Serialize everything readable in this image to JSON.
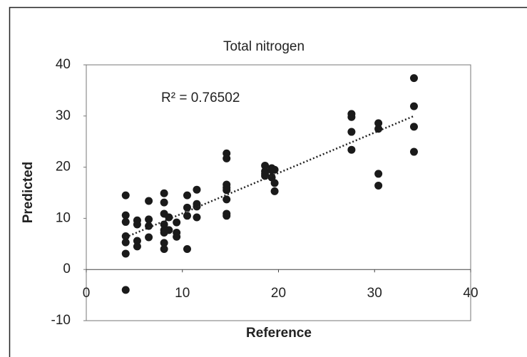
{
  "chart_data": {
    "type": "scatter",
    "title": "Total nitrogen",
    "x_label": "Reference",
    "y_label": "Predicted",
    "annotation": "R² = 0.76502",
    "color": "#1a1a1a",
    "x": [
      4.1,
      4.1,
      4.1,
      4.1,
      4.1,
      4.1,
      4.1,
      5.3,
      5.3,
      5.3,
      5.3,
      6.5,
      6.5,
      6.5,
      6.5,
      8.1,
      8.1,
      8.1,
      8.1,
      8.1,
      8.1,
      8.1,
      8.1,
      8.6,
      8.6,
      9.4,
      9.4,
      9.4,
      10.5,
      10.5,
      10.5,
      10.5,
      11.5,
      11.5,
      11.5,
      11.5,
      14.6,
      14.6,
      14.6,
      14.6,
      14.6,
      14.6,
      14.6,
      14.6,
      18.6,
      18.6,
      18.6,
      18.6,
      19.3,
      19.3,
      19.3,
      19.6,
      19.6,
      19.6,
      27.6,
      27.6,
      27.6,
      27.6,
      30.4,
      30.4,
      30.4,
      30.4,
      34.1,
      34.1,
      34.1,
      34.1
    ],
    "values": [
      14.5,
      10.6,
      9.3,
      6.5,
      5.3,
      3.1,
      -4.0,
      9.6,
      8.8,
      5.6,
      4.5,
      13.4,
      9.8,
      8.5,
      6.3,
      14.9,
      13.1,
      10.9,
      8.8,
      7.7,
      7.2,
      5.2,
      4.0,
      10.2,
      7.7,
      9.2,
      7.2,
      6.4,
      14.5,
      12.1,
      10.5,
      4.0,
      15.6,
      12.8,
      12.3,
      10.2,
      22.7,
      21.7,
      16.6,
      16.0,
      15.5,
      13.7,
      10.9,
      10.5,
      20.3,
      19.2,
      18.7,
      18.3,
      19.8,
      19.4,
      18.0,
      19.5,
      16.9,
      15.3,
      30.4,
      29.8,
      26.9,
      23.4,
      28.6,
      27.5,
      18.7,
      16.4,
      37.4,
      31.9,
      27.9,
      23.0
    ],
    "trendline": {
      "x": [
        4.1,
        34.1
      ],
      "values": [
        6.3,
        30.0
      ]
    },
    "xlim": [
      0,
      40
    ],
    "xticks": [
      0,
      10,
      20,
      30,
      40
    ],
    "ylim": [
      -10,
      40
    ],
    "yticks": [
      40,
      30,
      20,
      10,
      0,
      -10
    ]
  }
}
